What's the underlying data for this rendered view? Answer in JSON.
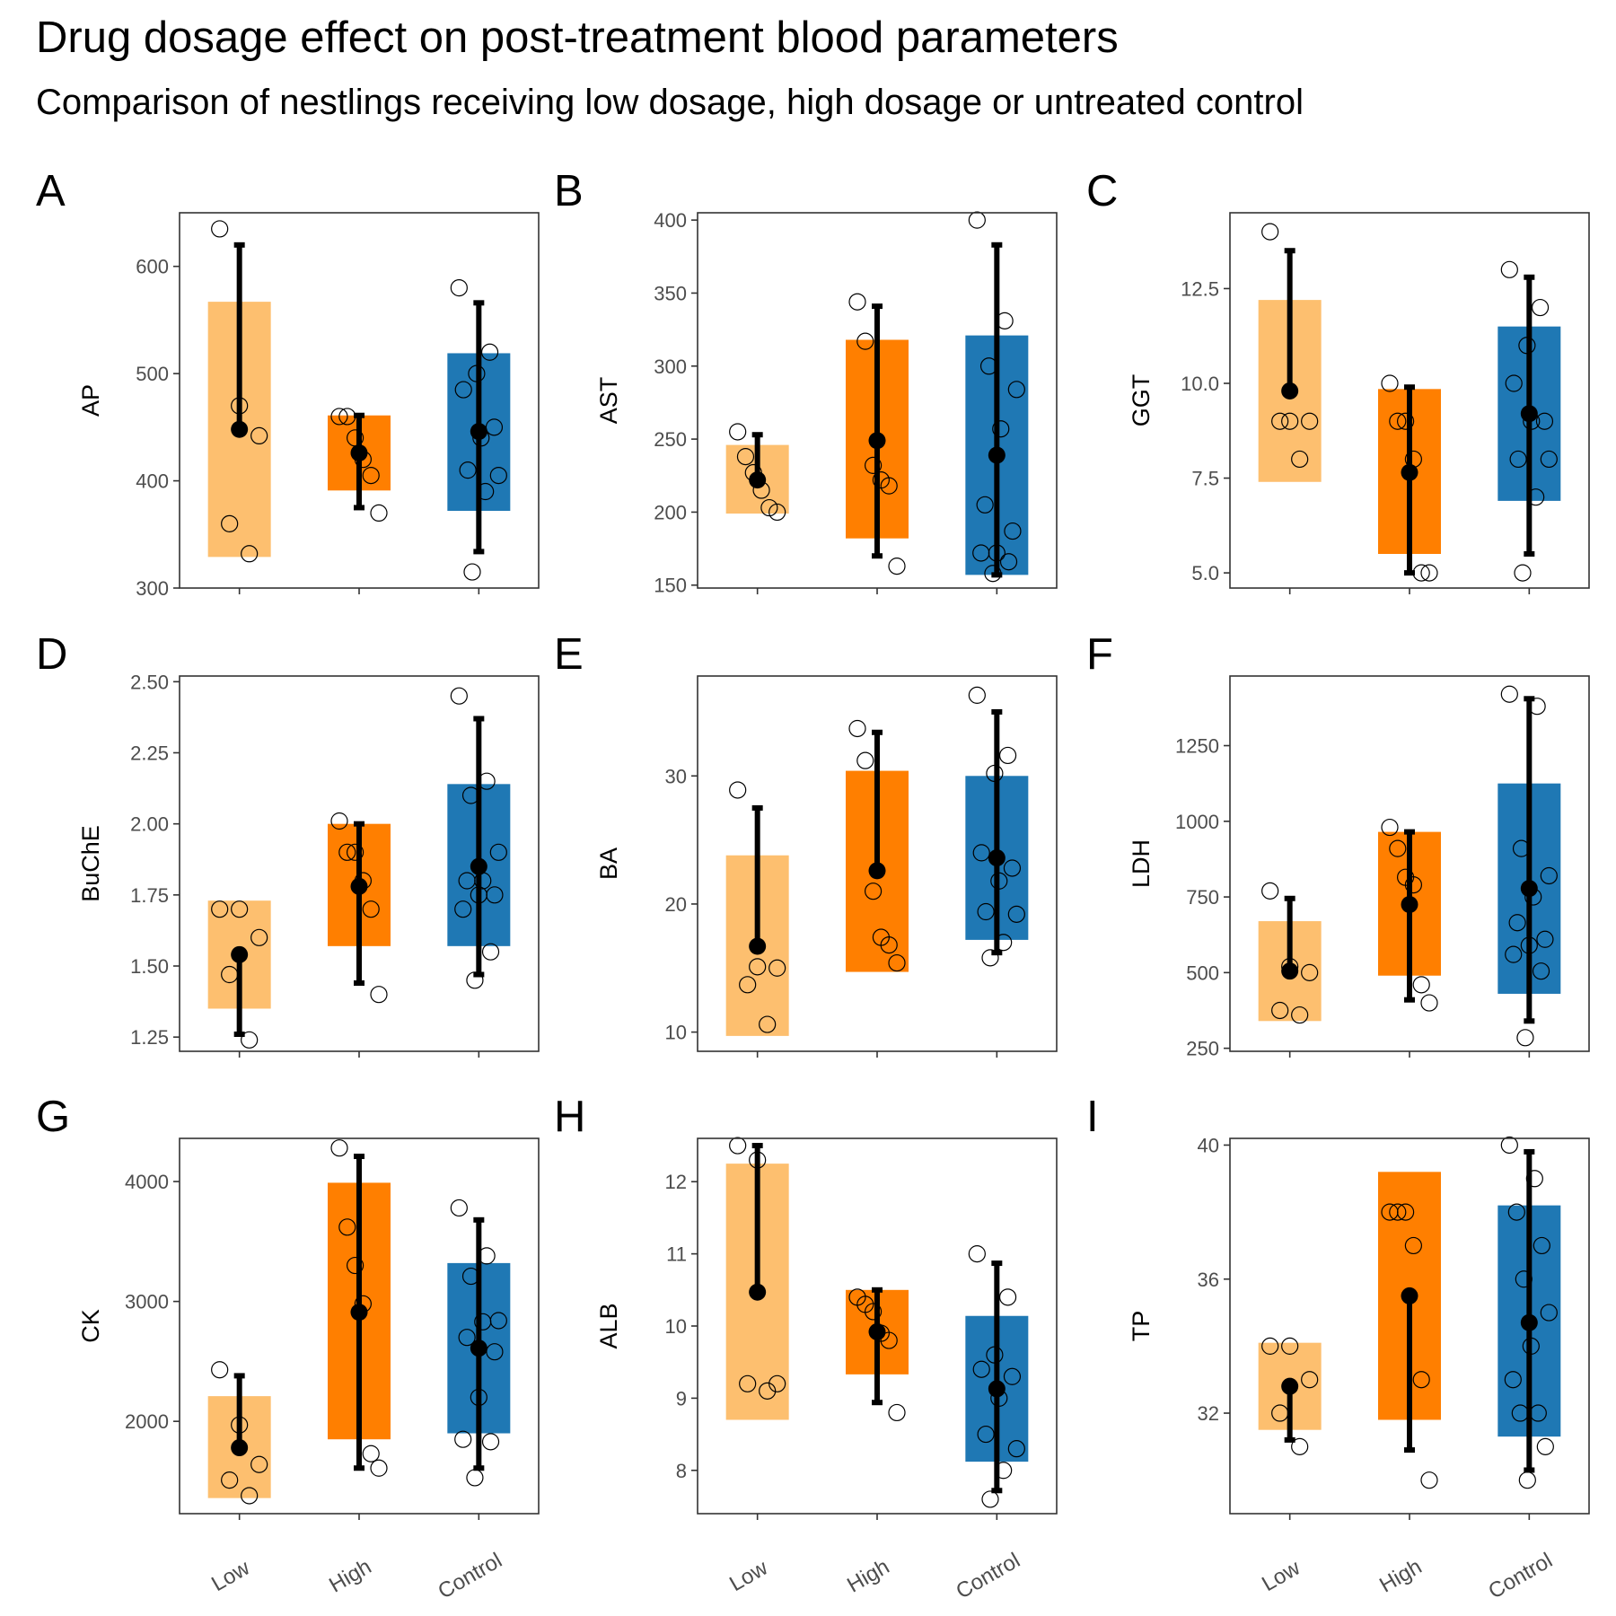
{
  "title": "Drug dosage effect on post-treatment blood parameters",
  "subtitle": "Comparison of nestlings receiving low dosage, high dosage or untreated control",
  "colors": {
    "Low": "#fdbf6f",
    "High": "#ff7f00",
    "Control": "#1f78b4",
    "mean": "#000000",
    "errorbar": "#000000",
    "point_stroke": "#000000"
  },
  "chart_data": [
    {
      "panel": "A",
      "type": "box",
      "ylabel": "AP",
      "ylim": [
        300,
        650
      ],
      "ticks": [
        300,
        400,
        500,
        600
      ],
      "categories": [
        "Low",
        "High",
        "Control"
      ],
      "groups": [
        {
          "name": "Low",
          "lower": 329,
          "upper": 567,
          "mean": 448,
          "err_lo": 448,
          "err_hi": 620,
          "points": [
            635,
            470,
            442,
            360,
            332
          ]
        },
        {
          "name": "High",
          "lower": 391,
          "upper": 461,
          "mean": 426,
          "err_lo": 375,
          "err_hi": 461,
          "points": [
            460,
            460,
            440,
            420,
            405,
            370
          ]
        },
        {
          "name": "Control",
          "lower": 372,
          "upper": 519,
          "mean": 446,
          "err_lo": 334,
          "err_hi": 566,
          "points": [
            580,
            520,
            500,
            485,
            450,
            440,
            410,
            405,
            390,
            315
          ]
        }
      ]
    },
    {
      "panel": "B",
      "type": "box",
      "ylabel": "AST",
      "ylim": [
        148,
        405
      ],
      "ticks": [
        150,
        200,
        250,
        300,
        350,
        400
      ],
      "categories": [
        "Low",
        "High",
        "Control"
      ],
      "groups": [
        {
          "name": "Low",
          "lower": 199,
          "upper": 246,
          "mean": 222,
          "err_lo": 222,
          "err_hi": 253,
          "points": [
            255,
            238,
            227,
            215,
            203,
            200
          ]
        },
        {
          "name": "High",
          "lower": 182,
          "upper": 318,
          "mean": 249,
          "err_lo": 170,
          "err_hi": 341,
          "points": [
            344,
            317,
            232,
            222,
            218,
            163
          ]
        },
        {
          "name": "Control",
          "lower": 157,
          "upper": 321,
          "mean": 239,
          "err_lo": 157,
          "err_hi": 383,
          "points": [
            400,
            331,
            300,
            284,
            257,
            205,
            187,
            172,
            172,
            166,
            158
          ]
        }
      ]
    },
    {
      "panel": "C",
      "type": "box",
      "ylabel": "GGT",
      "ylim": [
        4.6,
        14.5
      ],
      "ticks": [
        5.0,
        7.5,
        10.0,
        12.5
      ],
      "categories": [
        "Low",
        "High",
        "Control"
      ],
      "groups": [
        {
          "name": "Low",
          "lower": 7.4,
          "upper": 12.2,
          "mean": 9.8,
          "err_lo": 9.8,
          "err_hi": 13.5,
          "points": [
            14,
            9,
            9,
            9,
            8
          ]
        },
        {
          "name": "High",
          "lower": 5.5,
          "upper": 9.85,
          "mean": 7.65,
          "err_lo": 5.0,
          "err_hi": 9.9,
          "points": [
            10,
            9,
            9,
            8,
            5,
            5
          ]
        },
        {
          "name": "Control",
          "lower": 6.9,
          "upper": 11.5,
          "mean": 9.2,
          "err_lo": 5.5,
          "err_hi": 12.8,
          "points": [
            13,
            12,
            11,
            10,
            9,
            9,
            8,
            8,
            7,
            5
          ]
        }
      ]
    },
    {
      "panel": "D",
      "type": "box",
      "ylabel": "BuChE",
      "ylim": [
        1.2,
        2.52
      ],
      "ticks": [
        1.25,
        1.5,
        1.75,
        2.0,
        2.25,
        2.5
      ],
      "categories": [
        "Low",
        "High",
        "Control"
      ],
      "groups": [
        {
          "name": "Low",
          "lower": 1.35,
          "upper": 1.73,
          "mean": 1.54,
          "err_lo": 1.26,
          "err_hi": 1.54,
          "points": [
            1.7,
            1.7,
            1.6,
            1.47,
            1.24
          ]
        },
        {
          "name": "High",
          "lower": 1.57,
          "upper": 2.0,
          "mean": 1.78,
          "err_lo": 1.44,
          "err_hi": 2.0,
          "points": [
            2.01,
            1.9,
            1.9,
            1.8,
            1.7,
            1.4
          ]
        },
        {
          "name": "Control",
          "lower": 1.57,
          "upper": 2.14,
          "mean": 1.85,
          "err_lo": 1.47,
          "err_hi": 2.37,
          "points": [
            2.45,
            2.15,
            2.1,
            1.9,
            1.8,
            1.8,
            1.75,
            1.75,
            1.7,
            1.55,
            1.45
          ]
        }
      ]
    },
    {
      "panel": "E",
      "type": "box",
      "ylabel": "BA",
      "ylim": [
        8.5,
        37.8
      ],
      "ticks": [
        10,
        20,
        30
      ],
      "categories": [
        "Low",
        "High",
        "Control"
      ],
      "groups": [
        {
          "name": "Low",
          "lower": 9.7,
          "upper": 23.8,
          "mean": 16.7,
          "err_lo": 16.7,
          "err_hi": 27.5,
          "points": [
            28.9,
            15.1,
            15.0,
            13.7,
            10.6
          ]
        },
        {
          "name": "High",
          "lower": 14.7,
          "upper": 30.4,
          "mean": 22.6,
          "err_lo": 22.6,
          "err_hi": 33.4,
          "points": [
            33.7,
            31.2,
            21.0,
            17.4,
            16.8,
            15.4
          ]
        },
        {
          "name": "Control",
          "lower": 17.2,
          "upper": 30.0,
          "mean": 23.6,
          "err_lo": 16.2,
          "err_hi": 35.0,
          "points": [
            36.3,
            31.6,
            30.2,
            24.0,
            22.8,
            21.8,
            19.4,
            19.2,
            17.0,
            15.8
          ]
        }
      ]
    },
    {
      "panel": "F",
      "type": "box",
      "ylabel": "LDH",
      "ylim": [
        240,
        1480
      ],
      "ticks": [
        250,
        500,
        750,
        1000,
        1250
      ],
      "categories": [
        "Low",
        "High",
        "Control"
      ],
      "groups": [
        {
          "name": "Low",
          "lower": 340,
          "upper": 670,
          "mean": 505,
          "err_lo": 505,
          "err_hi": 745,
          "points": [
            770,
            520,
            500,
            375,
            360
          ]
        },
        {
          "name": "High",
          "lower": 490,
          "upper": 965,
          "mean": 725,
          "err_lo": 410,
          "err_hi": 965,
          "points": [
            980,
            910,
            815,
            790,
            460,
            400
          ]
        },
        {
          "name": "Control",
          "lower": 430,
          "upper": 1125,
          "mean": 778,
          "err_lo": 340,
          "err_hi": 1405,
          "points": [
            1420,
            1380,
            910,
            820,
            750,
            665,
            610,
            590,
            560,
            505,
            285
          ]
        }
      ]
    },
    {
      "panel": "G",
      "type": "box",
      "ylabel": "CK",
      "ylim": [
        1230,
        4360
      ],
      "ticks": [
        2000,
        3000,
        4000
      ],
      "categories": [
        "Low",
        "High",
        "Control"
      ],
      "groups": [
        {
          "name": "Low",
          "lower": 1360,
          "upper": 2210,
          "mean": 1780,
          "err_lo": 1780,
          "err_hi": 2380,
          "points": [
            2430,
            1970,
            1640,
            1510,
            1380
          ]
        },
        {
          "name": "High",
          "lower": 1850,
          "upper": 3990,
          "mean": 2910,
          "err_lo": 1610,
          "err_hi": 4210,
          "points": [
            4280,
            3620,
            3300,
            2980,
            1730,
            1610
          ]
        },
        {
          "name": "Control",
          "lower": 1900,
          "upper": 3320,
          "mean": 2610,
          "err_lo": 1610,
          "err_hi": 3680,
          "points": [
            3780,
            3380,
            3210,
            2840,
            2830,
            2700,
            2580,
            2200,
            1850,
            1830,
            1530
          ]
        }
      ]
    },
    {
      "panel": "H",
      "type": "box",
      "ylabel": "ALB",
      "ylim": [
        7.4,
        12.6
      ],
      "ticks": [
        8,
        9,
        10,
        11,
        12
      ],
      "categories": [
        "Low",
        "High",
        "Control"
      ],
      "groups": [
        {
          "name": "Low",
          "lower": 8.7,
          "upper": 12.25,
          "mean": 10.47,
          "err_lo": 10.47,
          "err_hi": 12.5,
          "points": [
            12.5,
            12.3,
            9.2,
            9.2,
            9.1
          ]
        },
        {
          "name": "High",
          "lower": 9.33,
          "upper": 10.5,
          "mean": 9.92,
          "err_lo": 8.94,
          "err_hi": 10.5,
          "points": [
            10.4,
            10.3,
            10.2,
            9.9,
            9.8,
            8.8
          ]
        },
        {
          "name": "Control",
          "lower": 8.12,
          "upper": 10.14,
          "mean": 9.13,
          "err_lo": 7.72,
          "err_hi": 10.87,
          "points": [
            11.0,
            10.4,
            9.6,
            9.4,
            9.3,
            9.0,
            8.5,
            8.3,
            8.0,
            7.6
          ]
        }
      ]
    },
    {
      "panel": "I",
      "type": "box",
      "ylabel": "TP",
      "ylim": [
        29.0,
        40.2
      ],
      "ticks": [
        32,
        36,
        40
      ],
      "categories": [
        "Low",
        "High",
        "Control"
      ],
      "groups": [
        {
          "name": "Low",
          "lower": 31.5,
          "upper": 34.1,
          "mean": 32.8,
          "err_lo": 31.2,
          "err_hi": 32.8,
          "points": [
            34,
            34,
            33,
            32,
            31
          ]
        },
        {
          "name": "High",
          "lower": 31.8,
          "upper": 39.2,
          "mean": 35.5,
          "err_lo": 30.9,
          "err_hi": 35.5,
          "points": [
            38,
            38,
            38,
            37,
            33,
            30
          ]
        },
        {
          "name": "Control",
          "lower": 31.3,
          "upper": 38.2,
          "mean": 34.7,
          "err_lo": 30.3,
          "err_hi": 39.8,
          "points": [
            40,
            39,
            38,
            37,
            36,
            35,
            34,
            33,
            32,
            32,
            31,
            30
          ]
        }
      ]
    }
  ]
}
